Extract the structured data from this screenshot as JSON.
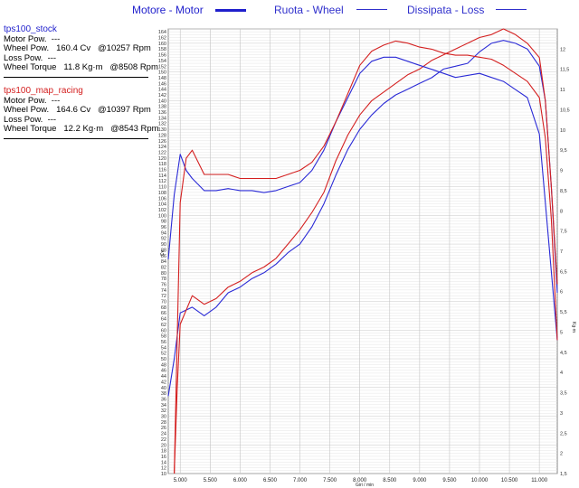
{
  "legend": [
    {
      "label": "Motore - Motor",
      "color": "#1f1fcc"
    },
    {
      "label": "Ruota - Wheel",
      "color": "#3030cc"
    },
    {
      "label": "Dissipata - Loss",
      "color": "#3030cc"
    }
  ],
  "runs": [
    {
      "title": "tps100_stock",
      "color": "#1f1fcc",
      "lines": [
        "Motor Pow.  ---",
        "Wheel Pow.   160.4 Cv   @10257 Rpm",
        "Loss Pow.  ---",
        "Wheel Torque   11.8 Kg·m   @8508 Rpm"
      ]
    },
    {
      "title": "tps100_map_racing",
      "color": "#d42020",
      "lines": [
        "Motor Pow.  ---",
        "Wheel Pow.   164.6 Cv   @10397 Rpm",
        "Loss Pow.  ---",
        "Wheel Torque   12.2 Kg·m   @8543 Rpm"
      ]
    }
  ],
  "chart_data": {
    "type": "line",
    "xlabel": "Giri / min",
    "ylabel": "Cv",
    "y2label": "Kg·m",
    "xlim": [
      4800,
      11300
    ],
    "ylim": [
      10,
      165
    ],
    "y2lim": [
      1.5,
      12.5
    ],
    "grid": true,
    "x_ticks": [
      {
        "v": 5000,
        "label": "5.000"
      },
      {
        "v": 5500,
        "label": "5.500"
      },
      {
        "v": 6000,
        "label": "6.000"
      },
      {
        "v": 6500,
        "label": "6.500"
      },
      {
        "v": 7000,
        "label": "7.000"
      },
      {
        "v": 7500,
        "label": "7.500"
      },
      {
        "v": 8000,
        "label": "8.000"
      },
      {
        "v": 8500,
        "label": "8.500"
      },
      {
        "v": 9000,
        "label": "9.000"
      },
      {
        "v": 9500,
        "label": "9.500"
      },
      {
        "v": 10000,
        "label": "10.000"
      },
      {
        "v": 10500,
        "label": "10.500"
      },
      {
        "v": 11000,
        "label": "11.000"
      }
    ],
    "y2_ticks": [
      {
        "v": 12,
        "label": "12"
      },
      {
        "v": 11.5,
        "label": "11,5"
      },
      {
        "v": 11,
        "label": "11"
      },
      {
        "v": 10.5,
        "label": "10,5"
      },
      {
        "v": 10,
        "label": "10"
      },
      {
        "v": 9.5,
        "label": "9,5"
      },
      {
        "v": 9,
        "label": "9"
      },
      {
        "v": 8.5,
        "label": "8,5"
      },
      {
        "v": 8,
        "label": "8"
      },
      {
        "v": 7.5,
        "label": "7,5"
      },
      {
        "v": 7,
        "label": "7"
      },
      {
        "v": 6.5,
        "label": "6,5"
      },
      {
        "v": 6,
        "label": "6"
      },
      {
        "v": 5.5,
        "label": "5,5"
      },
      {
        "v": 5,
        "label": "5"
      },
      {
        "v": 4.5,
        "label": "4,5"
      },
      {
        "v": 4,
        "label": "4"
      },
      {
        "v": 3.5,
        "label": "3,5"
      },
      {
        "v": 3,
        "label": "3"
      },
      {
        "v": 2.5,
        "label": "2,5"
      },
      {
        "v": 2,
        "label": "2"
      },
      {
        "v": 1.5,
        "label": "1,5"
      }
    ],
    "series": [
      {
        "name": "tps100_stock",
        "kind": "power",
        "axis": "left",
        "color": "#2a2ad6",
        "x": [
          4800,
          4900,
          5000,
          5200,
          5400,
          5600,
          5800,
          6000,
          6200,
          6400,
          6600,
          6800,
          7000,
          7200,
          7400,
          7600,
          7800,
          8000,
          8200,
          8400,
          8600,
          8800,
          9000,
          9200,
          9400,
          9600,
          9800,
          10000,
          10200,
          10400,
          10600,
          10800,
          11000,
          11100,
          11200,
          11300
        ],
        "y": [
          37,
          50,
          66,
          68,
          65,
          68,
          73,
          75,
          78,
          80,
          83,
          87,
          90,
          96,
          104,
          114,
          123,
          130,
          135,
          139,
          142,
          144,
          146,
          148,
          151,
          152,
          153,
          157,
          160,
          161,
          160,
          158,
          152,
          140,
          110,
          73
        ]
      },
      {
        "name": "tps100_map_racing",
        "kind": "power",
        "axis": "left",
        "color": "#d42020",
        "x": [
          4900,
          4950,
          5000,
          5200,
          5400,
          5600,
          5800,
          6000,
          6200,
          6400,
          6600,
          6800,
          7000,
          7200,
          7400,
          7600,
          7800,
          8000,
          8200,
          8400,
          8600,
          8800,
          9000,
          9200,
          9400,
          9600,
          9800,
          10000,
          10200,
          10400,
          10600,
          10800,
          11000,
          11100,
          11200,
          11300
        ],
        "y": [
          10,
          40,
          62,
          72,
          69,
          71,
          75,
          77,
          80,
          82,
          85,
          90,
          95,
          101,
          108,
          119,
          128,
          135,
          140,
          143,
          146,
          149,
          151,
          154,
          156,
          158,
          160,
          162,
          163,
          165,
          163,
          160,
          155,
          140,
          110,
          76
        ]
      },
      {
        "name": "tps100_stock",
        "kind": "torque",
        "axis": "right",
        "color": "#2a2ad6",
        "x": [
          4800,
          4900,
          5000,
          5100,
          5200,
          5400,
          5600,
          5800,
          6000,
          6200,
          6400,
          6600,
          6800,
          7000,
          7200,
          7400,
          7600,
          7800,
          8000,
          8200,
          8400,
          8600,
          8800,
          9000,
          9200,
          9400,
          9600,
          9800,
          10000,
          10200,
          10400,
          10600,
          10800,
          11000,
          11100,
          11200,
          11300
        ],
        "y": [
          6.8,
          8.4,
          9.4,
          9.0,
          8.8,
          8.5,
          8.5,
          8.55,
          8.5,
          8.5,
          8.45,
          8.5,
          8.6,
          8.7,
          9.0,
          9.5,
          10.2,
          10.8,
          11.4,
          11.7,
          11.8,
          11.8,
          11.7,
          11.6,
          11.5,
          11.4,
          11.3,
          11.35,
          11.4,
          11.3,
          11.2,
          11.0,
          10.8,
          9.9,
          8.2,
          6.5,
          4.8
        ]
      },
      {
        "name": "tps100_map_racing",
        "kind": "torque",
        "axis": "right",
        "color": "#d42020",
        "x": [
          4900,
          5000,
          5100,
          5200,
          5400,
          5600,
          5800,
          6000,
          6200,
          6400,
          6600,
          6800,
          7000,
          7200,
          7400,
          7600,
          7800,
          8000,
          8200,
          8400,
          8600,
          8800,
          9000,
          9200,
          9400,
          9600,
          9800,
          10000,
          10200,
          10400,
          10600,
          10800,
          11000,
          11100,
          11200,
          11300
        ],
        "y": [
          1.5,
          8.2,
          9.3,
          9.5,
          8.9,
          8.9,
          8.9,
          8.8,
          8.8,
          8.8,
          8.8,
          8.9,
          9.0,
          9.2,
          9.6,
          10.2,
          10.9,
          11.6,
          11.95,
          12.1,
          12.2,
          12.15,
          12.05,
          12.0,
          11.9,
          11.85,
          11.85,
          11.8,
          11.75,
          11.6,
          11.4,
          11.2,
          10.8,
          9.8,
          7.8,
          4.8
        ]
      }
    ]
  }
}
